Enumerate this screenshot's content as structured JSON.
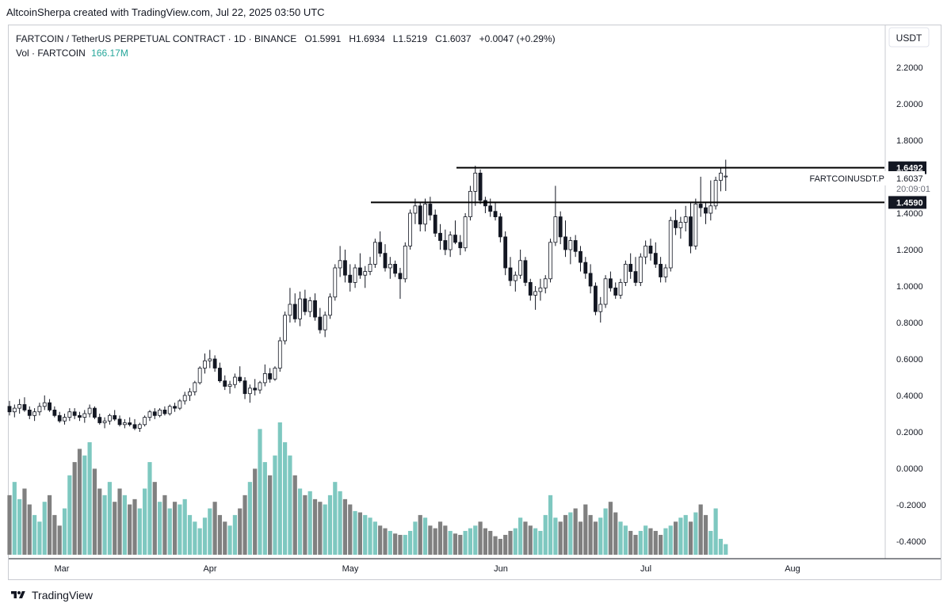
{
  "caption": "AltcoinSherpa created with TradingView.com, Jul 22, 2025 03:50 UTC",
  "legend": {
    "symbol_line": "FARTCOIN / TetherUS PERPETUAL CONTRACT · 1D · BINANCE",
    "open": "O1.5991",
    "high": "H1.6934",
    "low": "L1.5219",
    "close": "C1.6037",
    "change": "+0.0047 (+0.29%)",
    "vol_label": "Vol · FARTCOIN",
    "vol_value": "166.17M"
  },
  "currency_button": "USDT",
  "footer_brand": "TradingView",
  "price_tag": {
    "symbol": "FARTCOINUSDT.P",
    "price": "1.6037",
    "countdown": "20:09:01"
  },
  "chart_data": {
    "type": "candlestick",
    "ylim": [
      -0.5,
      2.35
    ],
    "y_ticks": [
      "2.2000",
      "2.0000",
      "1.8000",
      "1.6000",
      "1.4000",
      "1.2000",
      "1.0000",
      "0.8000",
      "0.6000",
      "0.4000",
      "0.2000",
      "0.0000",
      "-0.2000",
      "-0.4000"
    ],
    "x_ticks": [
      "Mar",
      "Apr",
      "May",
      "Jun",
      "Jul",
      "Aug"
    ],
    "horizontal_levels": [
      {
        "label": "1.6492",
        "value": 1.6492
      },
      {
        "label": "1.4590",
        "value": 1.459
      }
    ],
    "colors": {
      "up": "#ffffff",
      "down": "#131722",
      "vol_up": "#7ec8c0",
      "vol_down": "#808080"
    },
    "candles": [
      [
        0.34,
        0.37,
        0.29,
        0.31
      ],
      [
        0.31,
        0.35,
        0.28,
        0.33
      ],
      [
        0.33,
        0.38,
        0.3,
        0.35
      ],
      [
        0.35,
        0.39,
        0.31,
        0.32
      ],
      [
        0.32,
        0.34,
        0.27,
        0.29
      ],
      [
        0.29,
        0.33,
        0.26,
        0.31
      ],
      [
        0.31,
        0.36,
        0.29,
        0.34
      ],
      [
        0.34,
        0.4,
        0.32,
        0.36
      ],
      [
        0.36,
        0.38,
        0.31,
        0.32
      ],
      [
        0.32,
        0.34,
        0.28,
        0.29
      ],
      [
        0.29,
        0.31,
        0.25,
        0.26
      ],
      [
        0.26,
        0.3,
        0.24,
        0.28
      ],
      [
        0.28,
        0.33,
        0.26,
        0.31
      ],
      [
        0.31,
        0.33,
        0.27,
        0.29
      ],
      [
        0.29,
        0.31,
        0.26,
        0.28
      ],
      [
        0.28,
        0.32,
        0.25,
        0.3
      ],
      [
        0.3,
        0.35,
        0.28,
        0.33
      ],
      [
        0.33,
        0.34,
        0.27,
        0.28
      ],
      [
        0.28,
        0.3,
        0.24,
        0.25
      ],
      [
        0.25,
        0.28,
        0.22,
        0.26
      ],
      [
        0.26,
        0.3,
        0.24,
        0.29
      ],
      [
        0.29,
        0.32,
        0.26,
        0.27
      ],
      [
        0.27,
        0.29,
        0.23,
        0.24
      ],
      [
        0.24,
        0.27,
        0.22,
        0.25
      ],
      [
        0.25,
        0.28,
        0.23,
        0.24
      ],
      [
        0.24,
        0.27,
        0.21,
        0.22
      ],
      [
        0.22,
        0.25,
        0.2,
        0.24
      ],
      [
        0.24,
        0.29,
        0.23,
        0.28
      ],
      [
        0.28,
        0.32,
        0.26,
        0.31
      ],
      [
        0.31,
        0.33,
        0.27,
        0.29
      ],
      [
        0.29,
        0.33,
        0.28,
        0.32
      ],
      [
        0.32,
        0.34,
        0.29,
        0.3
      ],
      [
        0.3,
        0.35,
        0.29,
        0.34
      ],
      [
        0.34,
        0.36,
        0.31,
        0.33
      ],
      [
        0.33,
        0.38,
        0.32,
        0.37
      ],
      [
        0.37,
        0.42,
        0.35,
        0.4
      ],
      [
        0.4,
        0.44,
        0.37,
        0.42
      ],
      [
        0.42,
        0.48,
        0.4,
        0.47
      ],
      [
        0.47,
        0.56,
        0.46,
        0.55
      ],
      [
        0.55,
        0.63,
        0.52,
        0.59
      ],
      [
        0.59,
        0.65,
        0.55,
        0.6
      ],
      [
        0.6,
        0.62,
        0.53,
        0.55
      ],
      [
        0.55,
        0.58,
        0.47,
        0.48
      ],
      [
        0.48,
        0.51,
        0.43,
        0.45
      ],
      [
        0.45,
        0.48,
        0.41,
        0.46
      ],
      [
        0.46,
        0.52,
        0.44,
        0.5
      ],
      [
        0.5,
        0.56,
        0.47,
        0.48
      ],
      [
        0.48,
        0.5,
        0.38,
        0.41
      ],
      [
        0.41,
        0.46,
        0.36,
        0.44
      ],
      [
        0.44,
        0.49,
        0.4,
        0.43
      ],
      [
        0.43,
        0.48,
        0.41,
        0.47
      ],
      [
        0.47,
        0.57,
        0.45,
        0.52
      ],
      [
        0.52,
        0.55,
        0.47,
        0.49
      ],
      [
        0.49,
        0.56,
        0.48,
        0.55
      ],
      [
        0.55,
        0.72,
        0.53,
        0.7
      ],
      [
        0.7,
        0.86,
        0.68,
        0.84
      ],
      [
        0.84,
        0.99,
        0.8,
        0.9
      ],
      [
        0.9,
        0.96,
        0.8,
        0.82
      ],
      [
        0.82,
        0.97,
        0.78,
        0.93
      ],
      [
        0.93,
        0.98,
        0.84,
        0.86
      ],
      [
        0.86,
        0.94,
        0.83,
        0.92
      ],
      [
        0.92,
        0.96,
        0.81,
        0.83
      ],
      [
        0.83,
        0.88,
        0.74,
        0.76
      ],
      [
        0.76,
        0.86,
        0.72,
        0.84
      ],
      [
        0.84,
        0.96,
        0.82,
        0.94
      ],
      [
        0.94,
        1.12,
        0.92,
        1.1
      ],
      [
        1.1,
        1.22,
        1.05,
        1.14
      ],
      [
        1.14,
        1.2,
        1.02,
        1.06
      ],
      [
        1.06,
        1.12,
        0.97,
        1.02
      ],
      [
        1.02,
        1.12,
        0.99,
        1.1
      ],
      [
        1.1,
        1.18,
        1.04,
        1.06
      ],
      [
        1.06,
        1.11,
        0.99,
        1.08
      ],
      [
        1.08,
        1.16,
        1.06,
        1.12
      ],
      [
        1.12,
        1.26,
        1.1,
        1.24
      ],
      [
        1.24,
        1.3,
        1.16,
        1.18
      ],
      [
        1.18,
        1.23,
        1.08,
        1.1
      ],
      [
        1.1,
        1.16,
        1.04,
        1.12
      ],
      [
        1.12,
        1.14,
        1.05,
        1.07
      ],
      [
        1.07,
        1.1,
        0.93,
        1.04
      ],
      [
        1.04,
        1.24,
        1.02,
        1.22
      ],
      [
        1.22,
        1.42,
        1.2,
        1.4
      ],
      [
        1.4,
        1.48,
        1.34,
        1.44
      ],
      [
        1.44,
        1.46,
        1.3,
        1.34
      ],
      [
        1.34,
        1.48,
        1.3,
        1.45
      ],
      [
        1.45,
        1.49,
        1.36,
        1.39
      ],
      [
        1.39,
        1.42,
        1.27,
        1.29
      ],
      [
        1.29,
        1.34,
        1.2,
        1.25
      ],
      [
        1.25,
        1.31,
        1.17,
        1.2
      ],
      [
        1.2,
        1.3,
        1.16,
        1.28
      ],
      [
        1.28,
        1.36,
        1.23,
        1.24
      ],
      [
        1.24,
        1.28,
        1.17,
        1.21
      ],
      [
        1.21,
        1.4,
        1.19,
        1.38
      ],
      [
        1.38,
        1.55,
        1.36,
        1.52
      ],
      [
        1.52,
        1.66,
        1.44,
        1.62
      ],
      [
        1.62,
        1.64,
        1.45,
        1.47
      ],
      [
        1.47,
        1.49,
        1.4,
        1.44
      ],
      [
        1.44,
        1.48,
        1.38,
        1.41
      ],
      [
        1.41,
        1.46,
        1.36,
        1.38
      ],
      [
        1.38,
        1.4,
        1.24,
        1.27
      ],
      [
        1.27,
        1.3,
        1.06,
        1.1
      ],
      [
        1.1,
        1.16,
        1.0,
        1.03
      ],
      [
        1.03,
        1.08,
        0.97,
        1.06
      ],
      [
        1.06,
        1.2,
        1.04,
        1.14
      ],
      [
        1.14,
        1.16,
        1.0,
        1.02
      ],
      [
        1.02,
        1.04,
        0.92,
        0.95
      ],
      [
        0.95,
        1.0,
        0.87,
        0.97
      ],
      [
        0.97,
        1.04,
        0.92,
        0.99
      ],
      [
        0.99,
        1.06,
        0.96,
        1.04
      ],
      [
        1.04,
        1.26,
        1.02,
        1.24
      ],
      [
        1.24,
        1.55,
        1.22,
        1.38
      ],
      [
        1.38,
        1.41,
        1.23,
        1.27
      ],
      [
        1.27,
        1.36,
        1.16,
        1.2
      ],
      [
        1.2,
        1.27,
        1.12,
        1.25
      ],
      [
        1.25,
        1.28,
        1.16,
        1.19
      ],
      [
        1.19,
        1.22,
        1.08,
        1.13
      ],
      [
        1.13,
        1.16,
        1.04,
        1.07
      ],
      [
        1.07,
        1.12,
        0.96,
        1.0
      ],
      [
        1.0,
        1.02,
        0.84,
        0.86
      ],
      [
        0.86,
        0.94,
        0.8,
        0.9
      ],
      [
        0.9,
        1.06,
        0.88,
        1.04
      ],
      [
        1.04,
        1.08,
        0.97,
        0.99
      ],
      [
        0.99,
        1.02,
        0.93,
        0.95
      ],
      [
        0.95,
        1.04,
        0.93,
        1.02
      ],
      [
        1.02,
        1.14,
        1.0,
        1.12
      ],
      [
        1.12,
        1.18,
        1.04,
        1.08
      ],
      [
        1.08,
        1.16,
        1.0,
        1.02
      ],
      [
        1.02,
        1.18,
        1.0,
        1.16
      ],
      [
        1.16,
        1.25,
        1.12,
        1.22
      ],
      [
        1.22,
        1.26,
        1.14,
        1.18
      ],
      [
        1.18,
        1.24,
        1.1,
        1.12
      ],
      [
        1.12,
        1.16,
        1.02,
        1.05
      ],
      [
        1.05,
        1.12,
        1.02,
        1.1
      ],
      [
        1.1,
        1.38,
        1.08,
        1.36
      ],
      [
        1.36,
        1.42,
        1.28,
        1.32
      ],
      [
        1.32,
        1.38,
        1.26,
        1.35
      ],
      [
        1.35,
        1.44,
        1.3,
        1.38
      ],
      [
        1.38,
        1.46,
        1.18,
        1.22
      ],
      [
        1.22,
        1.48,
        1.2,
        1.45
      ],
      [
        1.45,
        1.6,
        1.38,
        1.43
      ],
      [
        1.43,
        1.46,
        1.34,
        1.4
      ],
      [
        1.4,
        1.58,
        1.36,
        1.44
      ],
      [
        1.44,
        1.6,
        1.42,
        1.58
      ],
      [
        1.58,
        1.65,
        1.52,
        1.62
      ],
      [
        1.5991,
        1.6934,
        1.5219,
        1.6037
      ]
    ],
    "volume_fraction": [
      0.45,
      0.55,
      0.42,
      0.5,
      0.38,
      0.3,
      0.25,
      0.4,
      0.45,
      0.3,
      0.22,
      0.35,
      0.6,
      0.7,
      0.8,
      0.75,
      0.85,
      0.65,
      0.5,
      0.45,
      0.55,
      0.4,
      0.5,
      0.45,
      0.38,
      0.42,
      0.35,
      0.5,
      0.7,
      0.55,
      0.4,
      0.45,
      0.35,
      0.4,
      0.38,
      0.42,
      0.3,
      0.25,
      0.2,
      0.28,
      0.35,
      0.4,
      0.3,
      0.25,
      0.22,
      0.3,
      0.35,
      0.45,
      0.55,
      0.65,
      0.95,
      0.7,
      0.6,
      0.75,
      1.0,
      0.85,
      0.75,
      0.6,
      0.5,
      0.45,
      0.48,
      0.42,
      0.4,
      0.38,
      0.45,
      0.55,
      0.48,
      0.42,
      0.38,
      0.33,
      0.32,
      0.3,
      0.28,
      0.25,
      0.22,
      0.2,
      0.18,
      0.16,
      0.15,
      0.15,
      0.18,
      0.25,
      0.3,
      0.28,
      0.22,
      0.2,
      0.25,
      0.22,
      0.18,
      0.16,
      0.15,
      0.18,
      0.2,
      0.22,
      0.25,
      0.2,
      0.18,
      0.14,
      0.12,
      0.15,
      0.18,
      0.2,
      0.28,
      0.25,
      0.22,
      0.2,
      0.18,
      0.3,
      0.45,
      0.28,
      0.25,
      0.3,
      0.32,
      0.35,
      0.25,
      0.38,
      0.3,
      0.25,
      0.28,
      0.35,
      0.4,
      0.32,
      0.25,
      0.22,
      0.18,
      0.15,
      0.18,
      0.22,
      0.2,
      0.18,
      0.15,
      0.2,
      0.22,
      0.25,
      0.28,
      0.3,
      0.25,
      0.32,
      0.38,
      0.3,
      0.18,
      0.35,
      0.12,
      0.08
    ]
  }
}
